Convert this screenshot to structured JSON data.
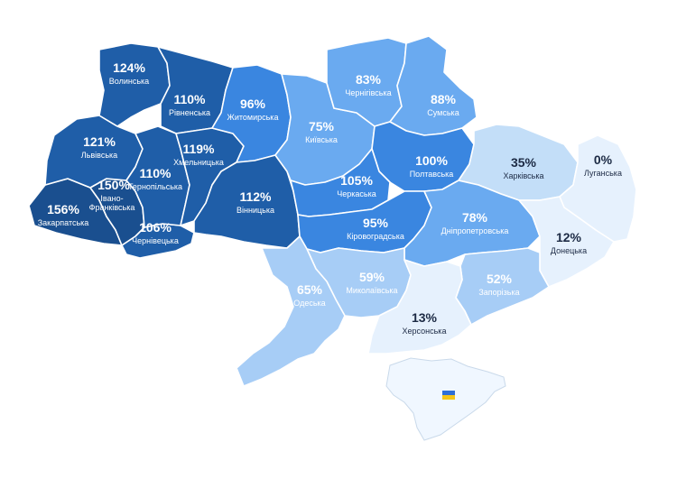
{
  "map": {
    "unit": "%",
    "colors": {
      "dark": "#1f5ea8",
      "darker": "#1a4f8f",
      "mid": "#3a86e0",
      "light": "#6aaaf0",
      "lighter": "#a7cdf6",
      "pale": "#e6f1fd",
      "text_light": "#ffffff",
      "text_dark": "#1c2a44"
    },
    "regions": [
      {
        "id": "volynska",
        "name": "Волинська",
        "pct": "124%",
        "value": 124
      },
      {
        "id": "rivnenska",
        "name": "Рівненська",
        "pct": "110%",
        "value": 110
      },
      {
        "id": "lvivska",
        "name": "Львівська",
        "pct": "121%",
        "value": 121
      },
      {
        "id": "zakarpatska",
        "name": "Закарпатська",
        "pct": "156%",
        "value": 156
      },
      {
        "id": "ivano",
        "name": "Івано-Франківська",
        "name1": "Івано-",
        "name2": "Франківська",
        "pct": "150%",
        "value": 150
      },
      {
        "id": "ternopilska",
        "name": "Тернопільська",
        "pct": "110%",
        "value": 110
      },
      {
        "id": "khmelnytska",
        "name": "Хмельницька",
        "pct": "119%",
        "value": 119
      },
      {
        "id": "chernivetska",
        "name": "Чернівецька",
        "pct": "106%",
        "value": 106
      },
      {
        "id": "zhytomyrska",
        "name": "Житомирська",
        "pct": "96%",
        "value": 96
      },
      {
        "id": "vinnytska",
        "name": "Вінницька",
        "pct": "112%",
        "value": 112
      },
      {
        "id": "kyivska",
        "name": "Київська",
        "pct": "75%",
        "value": 75
      },
      {
        "id": "chernihivska",
        "name": "Чернігівська",
        "pct": "83%",
        "value": 83
      },
      {
        "id": "sumska",
        "name": "Сумська",
        "pct": "88%",
        "value": 88
      },
      {
        "id": "poltavska",
        "name": "Полтавська",
        "pct": "100%",
        "value": 100
      },
      {
        "id": "cherkaska",
        "name": "Черкаська",
        "pct": "105%",
        "value": 105
      },
      {
        "id": "kirovohradska",
        "name": "Кіровоградська",
        "pct": "95%",
        "value": 95
      },
      {
        "id": "kharkivska",
        "name": "Харківська",
        "pct": "35%",
        "value": 35
      },
      {
        "id": "luhanska",
        "name": "Луганська",
        "pct": "0%",
        "value": 0
      },
      {
        "id": "dnipropetrovska",
        "name": "Дніпропетровська",
        "pct": "78%",
        "value": 78
      },
      {
        "id": "donetska",
        "name": "Донецька",
        "pct": "12%",
        "value": 12
      },
      {
        "id": "zaporizka",
        "name": "Запорізька",
        "pct": "52%",
        "value": 52
      },
      {
        "id": "mykolaivska",
        "name": "Миколаївська",
        "pct": "59%",
        "value": 59
      },
      {
        "id": "odeska",
        "name": "Одеська",
        "pct": "65%",
        "value": 65
      },
      {
        "id": "khersonska",
        "name": "Херсонська",
        "pct": "13%",
        "value": 13
      }
    ],
    "crimea_icon": "ukraine-flag-icon"
  }
}
